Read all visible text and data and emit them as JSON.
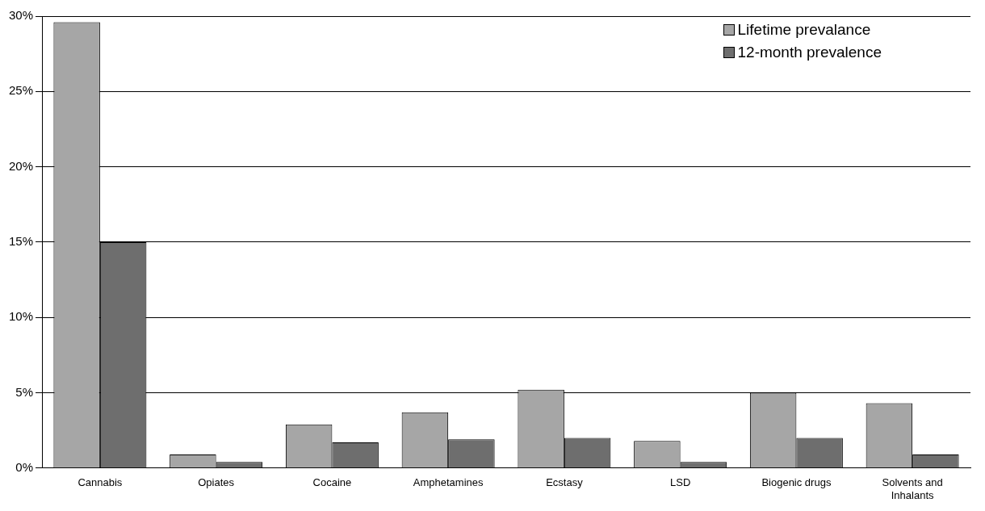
{
  "chart_data": {
    "type": "bar",
    "categories": [
      "Cannabis",
      "Opiates",
      "Cocaine",
      "Amphetamines",
      "Ecstasy",
      "LSD",
      "Biogenic drugs",
      "Solvents and Inhalants"
    ],
    "series": [
      {
        "name": "Lifetime prevalance",
        "color": "#a6a6a6",
        "values": [
          29.6,
          0.9,
          2.9,
          3.7,
          5.2,
          1.8,
          5.0,
          4.3
        ]
      },
      {
        "name": "12-month prevalence",
        "color": "#6e6e6e",
        "values": [
          15.0,
          0.4,
          1.7,
          1.9,
          2.0,
          0.4,
          2.0,
          0.9
        ]
      }
    ],
    "ylim": [
      0,
      30
    ],
    "yticks": [
      {
        "value": 0,
        "label": "0%"
      },
      {
        "value": 5,
        "label": "5%"
      },
      {
        "value": 10,
        "label": "10%"
      },
      {
        "value": 15,
        "label": "15%"
      },
      {
        "value": 20,
        "label": "20%"
      },
      {
        "value": 25,
        "label": "25%"
      },
      {
        "value": 30,
        "label": "30%"
      }
    ],
    "grid": "y",
    "legend": "top right"
  }
}
